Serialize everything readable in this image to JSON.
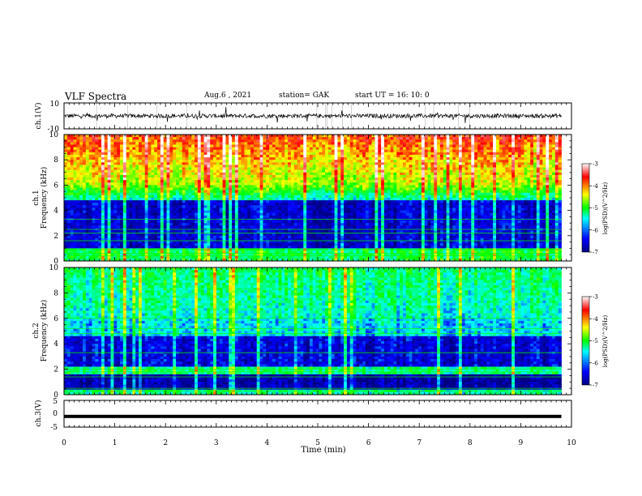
{
  "header": {
    "title": "VLF Spectra",
    "date": "Aug.6 , 2021",
    "station": "station= GAK",
    "start": "start UT = 16: 10: 0"
  },
  "chart_data": [
    {
      "type": "line",
      "panel": "ch1-waveform",
      "ylabel": "ch.1(V)",
      "ylim": [
        -10,
        10
      ],
      "y_ticks": [
        "10",
        "-10"
      ],
      "xlim": [
        0,
        10
      ],
      "approx_level": 0
    },
    {
      "type": "heatmap",
      "panel": "ch1-spectrogram",
      "ylabel_top": "ch.1",
      "ylabel": "Frequency (kHz)",
      "ylim": [
        0,
        10
      ],
      "y_ticks": [
        "0",
        "2",
        "4",
        "6",
        "8",
        "10"
      ],
      "xlim": [
        0,
        9.8
      ],
      "colorbar": {
        "label": "log(PSD)(V^2/Hz)",
        "range": [
          -7,
          -3
        ],
        "ticks": [
          "-3",
          "-4",
          "-5",
          "-6",
          "-7"
        ],
        "colors": [
          "#00007f",
          "#0000ff",
          "#00ffff",
          "#00ff00",
          "#ffff00",
          "#ff0000",
          "#ffffff"
        ]
      }
    },
    {
      "type": "heatmap",
      "panel": "ch2-spectrogram",
      "ylabel_top": "ch.2",
      "ylabel": "Frequency (kHz)",
      "ylim": [
        0,
        10
      ],
      "y_ticks": [
        "0",
        "2",
        "4",
        "6",
        "8",
        "10"
      ],
      "xlim": [
        0,
        9.8
      ],
      "colorbar": {
        "label": "log(PSD)(V^2/Hz)",
        "range": [
          -7,
          -3
        ],
        "ticks": [
          "-3",
          "-4",
          "-5",
          "-6",
          "-7"
        ],
        "colors": [
          "#00007f",
          "#0000ff",
          "#00ffff",
          "#00ff00",
          "#ffff00",
          "#ff0000",
          "#ffffff"
        ]
      }
    },
    {
      "type": "line",
      "panel": "ch3-waveform",
      "ylabel": "ch.3(V)",
      "ylim": [
        -5,
        5
      ],
      "y_ticks": [
        "5",
        "0",
        "-5"
      ],
      "xlim": [
        0,
        10
      ],
      "approx_level": -1
    }
  ],
  "xaxis": {
    "label": "Time (min)",
    "ticks": [
      "0",
      "1",
      "2",
      "3",
      "4",
      "5",
      "6",
      "7",
      "8",
      "9",
      "10"
    ]
  }
}
